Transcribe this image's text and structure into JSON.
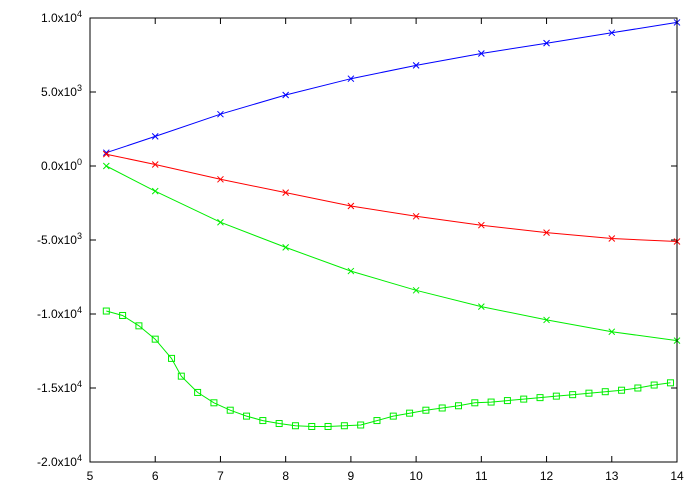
{
  "chart_data": {
    "type": "line",
    "title": "",
    "xlabel": "",
    "ylabel": "",
    "xlim": [
      5,
      14
    ],
    "ylim": [
      -20000,
      10000
    ],
    "grid": false,
    "x_ticks": [
      5,
      6,
      7,
      8,
      9,
      10,
      11,
      12,
      13,
      14
    ],
    "x_tick_labels": [
      "5",
      "6",
      "7",
      "8",
      "9",
      "10",
      "11",
      "12",
      "13",
      "14"
    ],
    "y_ticks": [
      10000,
      5000,
      0,
      -5000,
      -10000,
      -15000,
      -20000
    ],
    "y_tick_labels": [
      {
        "mant": "1.0x10",
        "exp": "4"
      },
      {
        "mant": "5.0x10",
        "exp": "3"
      },
      {
        "mant": "0.0x10",
        "exp": "0"
      },
      {
        "mant": "-5.0x10",
        "exp": "3"
      },
      {
        "mant": "-1.0x10",
        "exp": "4"
      },
      {
        "mant": "-1.5x10",
        "exp": "4"
      },
      {
        "mant": "-2.0x10",
        "exp": "4"
      }
    ],
    "series": [
      {
        "color": "#0000ff",
        "marker": "x",
        "x": [
          5.25,
          6.0,
          7.0,
          8.0,
          9.0,
          10.0,
          11.0,
          12.0,
          13.0,
          14.0
        ],
        "y": [
          900,
          2000,
          3500,
          4800,
          5900,
          6800,
          7600,
          8300,
          9000,
          9700
        ]
      },
      {
        "color": "#ff0000",
        "marker": "x",
        "x": [
          5.25,
          6.0,
          7.0,
          8.0,
          9.0,
          10.0,
          11.0,
          12.0,
          13.0,
          14.0
        ],
        "y": [
          800,
          100,
          -900,
          -1800,
          -2700,
          -3400,
          -4000,
          -4500,
          -4900,
          -5100
        ]
      },
      {
        "color": "#00ee00",
        "marker": "x",
        "x": [
          5.25,
          6.0,
          7.0,
          8.0,
          9.0,
          10.0,
          11.0,
          12.0,
          13.0,
          14.0
        ],
        "y": [
          0,
          -1700,
          -3800,
          -5500,
          -7100,
          -8400,
          -9500,
          -10400,
          -11200,
          -11800
        ]
      },
      {
        "color": "#00ee00",
        "marker": "square",
        "x": [
          5.25,
          5.5,
          5.75,
          6.0,
          6.25,
          6.4,
          6.65,
          6.9,
          7.15,
          7.4,
          7.65,
          7.9,
          8.15,
          8.4,
          8.65,
          8.9,
          9.15,
          9.4,
          9.65,
          9.9,
          10.15,
          10.4,
          10.65,
          10.9,
          11.15,
          11.4,
          11.65,
          11.9,
          12.15,
          12.4,
          12.65,
          12.9,
          13.15,
          13.4,
          13.65,
          13.9
        ],
        "y": [
          -9800,
          -10100,
          -10800,
          -11700,
          -13000,
          -14200,
          -15300,
          -16000,
          -16500,
          -16900,
          -17200,
          -17400,
          -17550,
          -17600,
          -17600,
          -17550,
          -17500,
          -17200,
          -16900,
          -16700,
          -16500,
          -16350,
          -16200,
          -16000,
          -15950,
          -15850,
          -15750,
          -15650,
          -15550,
          -15450,
          -15350,
          -15250,
          -15150,
          -15000,
          -14800,
          -14650
        ]
      }
    ]
  }
}
